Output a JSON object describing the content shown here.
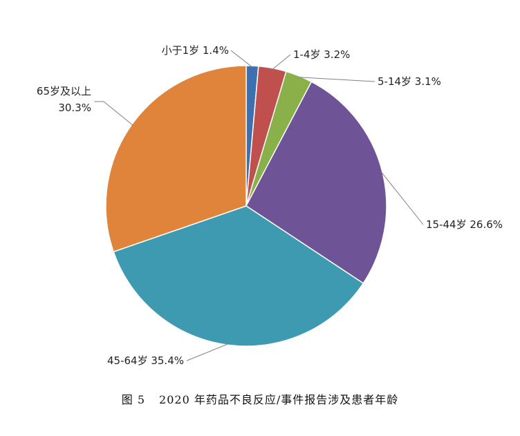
{
  "chart_data": {
    "type": "pie",
    "title": "",
    "categories": [
      "小于1岁",
      "1-4岁",
      "5-14岁",
      "15-44岁",
      "45-64岁",
      "65岁及以上"
    ],
    "values": [
      1.4,
      3.2,
      3.1,
      26.6,
      35.4,
      30.3
    ],
    "value_labels": [
      "1.4%",
      "3.2%",
      "3.1%",
      "26.6%",
      "35.4%",
      "30.3%"
    ],
    "colors": [
      "#3E6FB0",
      "#C0504D",
      "#8AB04A",
      "#6E5496",
      "#3E9AB0",
      "#E0843C"
    ],
    "start_angle_deg": 0,
    "direction": "clockwise",
    "legend": "none",
    "data_labels": "outside with leader lines"
  },
  "caption": {
    "figure_no": "图 5",
    "text": "2020 年药品不良反应/事件报告涉及患者年龄"
  }
}
